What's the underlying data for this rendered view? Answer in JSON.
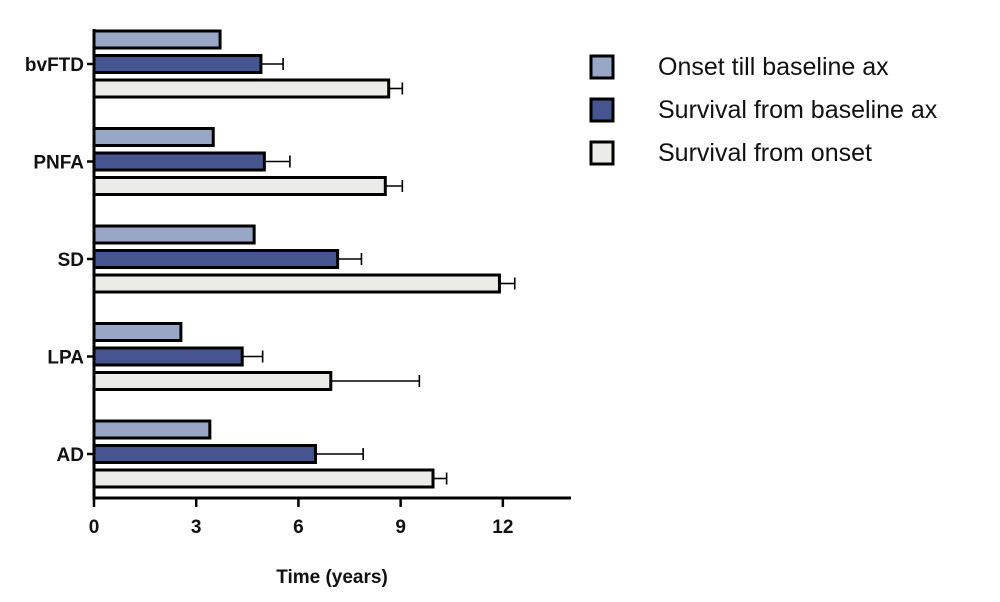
{
  "chart_data": {
    "type": "bar",
    "orientation": "horizontal",
    "categories": [
      "bvFTD",
      "PNFA",
      "SD",
      "LPA",
      "AD"
    ],
    "series": [
      {
        "name": "Onset till baseline ax",
        "color": "#98a7c6",
        "values": [
          3.7,
          3.5,
          4.7,
          2.55,
          3.4
        ],
        "errors": [
          null,
          null,
          null,
          null,
          null
        ]
      },
      {
        "name": "Survival from baseline ax",
        "color": "#46558f",
        "values": [
          4.9,
          5.0,
          7.15,
          4.35,
          6.5
        ],
        "errors": [
          0.65,
          0.75,
          0.7,
          0.6,
          1.4
        ]
      },
      {
        "name": "Survival from onset",
        "color": "#ebebe7",
        "values": [
          8.65,
          8.55,
          11.9,
          6.95,
          9.95
        ],
        "errors": [
          0.4,
          0.5,
          0.45,
          2.6,
          0.4
        ]
      }
    ],
    "xlabel": "Time (years)",
    "ylabel": "",
    "xlim": [
      0,
      14
    ],
    "xticks": [
      0,
      3,
      6,
      9,
      12
    ],
    "tick_labels": [
      "0",
      "3",
      "6",
      "9",
      "12"
    ],
    "grid": false,
    "legend_position": "top-right"
  }
}
